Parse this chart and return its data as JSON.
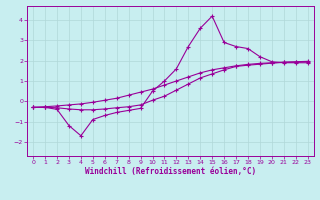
{
  "xlabel": "Windchill (Refroidissement éolien,°C)",
  "background_color": "#c8eef0",
  "grid_color": "#b0d8d8",
  "line_color": "#990099",
  "xlim": [
    -0.5,
    23.5
  ],
  "ylim": [
    -2.7,
    4.7
  ],
  "xticks": [
    0,
    1,
    2,
    3,
    4,
    5,
    6,
    7,
    8,
    9,
    10,
    11,
    12,
    13,
    14,
    15,
    16,
    17,
    18,
    19,
    20,
    21,
    22,
    23
  ],
  "yticks": [
    -2,
    -1,
    0,
    1,
    2,
    3,
    4
  ],
  "curve1_x": [
    0,
    1,
    2,
    3,
    4,
    5,
    6,
    7,
    8,
    9,
    10,
    11,
    12,
    13,
    14,
    15,
    16,
    17,
    18,
    19,
    20,
    21,
    22,
    23
  ],
  "curve1_y": [
    -0.3,
    -0.3,
    -0.4,
    -1.2,
    -1.7,
    -0.9,
    -0.7,
    -0.55,
    -0.45,
    -0.35,
    0.5,
    1.0,
    1.6,
    2.7,
    3.6,
    4.2,
    2.9,
    2.7,
    2.6,
    2.2,
    1.95,
    1.9,
    1.9,
    1.9
  ],
  "curve2_x": [
    0,
    1,
    2,
    3,
    4,
    5,
    6,
    7,
    8,
    9,
    10,
    11,
    12,
    13,
    14,
    15,
    16,
    17,
    18,
    19,
    20,
    21,
    22,
    23
  ],
  "curve2_y": [
    -0.3,
    -0.27,
    -0.23,
    -0.18,
    -0.13,
    -0.05,
    0.05,
    0.15,
    0.3,
    0.45,
    0.6,
    0.8,
    1.0,
    1.2,
    1.4,
    1.55,
    1.65,
    1.75,
    1.82,
    1.87,
    1.9,
    1.93,
    1.95,
    1.97
  ],
  "curve3_x": [
    0,
    1,
    2,
    3,
    4,
    5,
    6,
    7,
    8,
    9,
    10,
    11,
    12,
    13,
    14,
    15,
    16,
    17,
    18,
    19,
    20,
    21,
    22,
    23
  ],
  "curve3_y": [
    -0.3,
    -0.3,
    -0.32,
    -0.38,
    -0.42,
    -0.42,
    -0.38,
    -0.32,
    -0.27,
    -0.18,
    0.05,
    0.25,
    0.55,
    0.85,
    1.15,
    1.35,
    1.55,
    1.72,
    1.78,
    1.83,
    1.88,
    1.92,
    1.93,
    1.96
  ],
  "marker": "+",
  "markersize": 3.5,
  "linewidth": 0.8,
  "tick_fontsize": 4.5,
  "xlabel_fontsize": 5.5
}
